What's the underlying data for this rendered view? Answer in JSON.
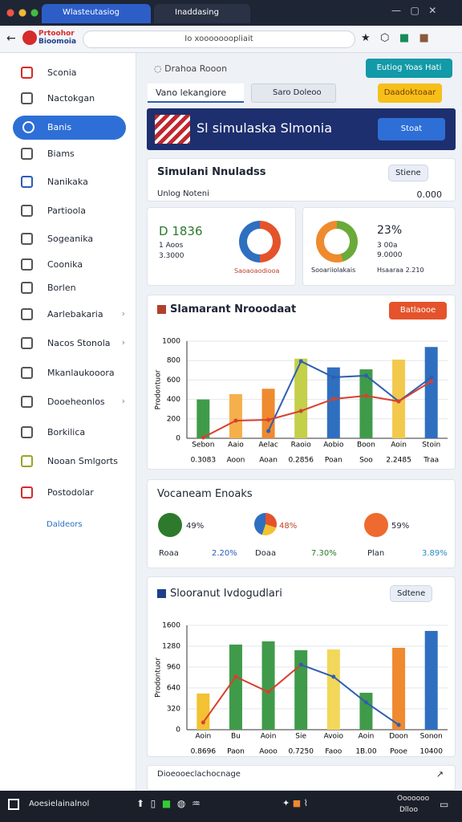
{
  "browser": {
    "tabs": [
      "Wlasteutasiog",
      "Inaddasing"
    ],
    "logo": [
      "Prtoohor",
      "Bioomoia"
    ],
    "url": "Io xooooooopliait"
  },
  "sidebar": {
    "items": [
      "Sconia",
      "Nactokgan",
      "Banis",
      "Biams",
      "Nanikaka",
      "Partioola",
      "Sogeanika",
      "Coonika",
      "Borlen",
      "Aarlebakaria",
      "Nacos Stonola",
      "Mkanlaukooora",
      "Dooeheonlos",
      "Borkilica",
      "Nooan Smlgorts",
      "Postodolar"
    ],
    "footer": "Daldeors"
  },
  "toolbar": {
    "breadcrumb": "Drahoa Rooon",
    "primary_button": "Eutiog Yoas Hati",
    "tab_1": "Vano lekangiore",
    "tab_2": "Saro Doleoo",
    "secondary_button": "Daadoktoaar"
  },
  "banner": {
    "title": "Sl simulaska Slmonia",
    "button": "Stoat"
  },
  "summary": {
    "title": "Simulani Nnuladss",
    "pill": "Stiene",
    "label": "Unlog Noteni",
    "value": "0.000"
  },
  "stat_left": {
    "value": "D 1836",
    "line_1": "1 Aoos",
    "line_2": "3.3000",
    "caption": "Saoaoaodiooa"
  },
  "stat_right": {
    "value": "23%",
    "line_1": "3 00a",
    "line_2": "9.0000",
    "caption_1": "Sooariiolakais",
    "caption_2": "Hsaaraa 2.210"
  },
  "charts": [
    {
      "type": "bar",
      "title": "Slamarant Nrooodaat",
      "button": "Batlaooe",
      "y_label": "Prodontuor",
      "categories": [
        "Sebon",
        "Aaio",
        "Aelac",
        "Raoio",
        "Aobio",
        "Boon",
        "Aoin",
        "Stoin"
      ],
      "sublabels": [
        "0.3083",
        "Aoon",
        "Aoan",
        "0.2856",
        "Poan",
        "Soo",
        "2.2485",
        "Traa"
      ],
      "values": [
        400,
        455,
        510,
        820,
        730,
        710,
        810,
        940
      ],
      "colors": [
        "#3f9b4a",
        "#f5b04c",
        "#ef8a2e",
        "#c4cf4a",
        "#2f6fc0",
        "#3f9b4a",
        "#f2c94c",
        "#2f6fc0"
      ],
      "lines": [
        {
          "color": "#2f5fb0",
          "values": [
            null,
            null,
            74,
            793,
            628,
            645,
            380,
            628
          ]
        },
        {
          "color": "#d8402f",
          "values": [
            8,
            182,
            190,
            281,
            405,
            438,
            380,
            587
          ]
        }
      ],
      "ylim": [
        0,
        1000
      ],
      "yticks": [
        0,
        200,
        400,
        600,
        800,
        1000
      ]
    },
    {
      "type": "bar",
      "title": "Slooranut Ivdogudlari",
      "button": "Sdtene",
      "y_label": "Prodontuor",
      "categories": [
        "Aoin",
        "Bu",
        "Aoin",
        "Sie",
        "Avoio",
        "Aoin",
        "Doon",
        "Sonon"
      ],
      "sublabels": [
        "0.8696",
        "Paon",
        "Aooo",
        "0.7250",
        "Faoo",
        "1B.00",
        "Pooe",
        "10400"
      ],
      "values": [
        554,
        1305,
        1354,
        1218,
        1230,
        566,
        1255,
        1514
      ],
      "colors": [
        "#f2c232",
        "#3f9b4a",
        "#3f9b4a",
        "#3f9b4a",
        "#f2d75a",
        "#3f9b4a",
        "#ef8a2e",
        "#2f6fc0"
      ],
      "lines": [
        {
          "color": "#d8402f",
          "values": [
            111,
            812,
            578,
            997,
            null,
            null,
            null,
            null
          ]
        },
        {
          "color": "#2f5fb0",
          "values": [
            null,
            null,
            null,
            997,
            812,
            418,
            74,
            null
          ]
        }
      ],
      "ylim": [
        0,
        1600
      ],
      "yticks": [
        0,
        320,
        640,
        960,
        1280,
        1600
      ]
    }
  ],
  "metrics": {
    "title": "Vocaneam Enoaks",
    "items": [
      {
        "badge": "49%",
        "label": "Roaa",
        "value": "2.20%"
      },
      {
        "badge": "48%",
        "label": "Doaa",
        "value": "7.30%"
      },
      {
        "badge": "59%",
        "label": "Plan",
        "value": "3.89%"
      }
    ]
  },
  "footer_strip": "Dioeooeclachocnage",
  "taskbar": {
    "search": "Aoesielainalnol",
    "time": "Ooooooo",
    "date": "Dlloo"
  }
}
